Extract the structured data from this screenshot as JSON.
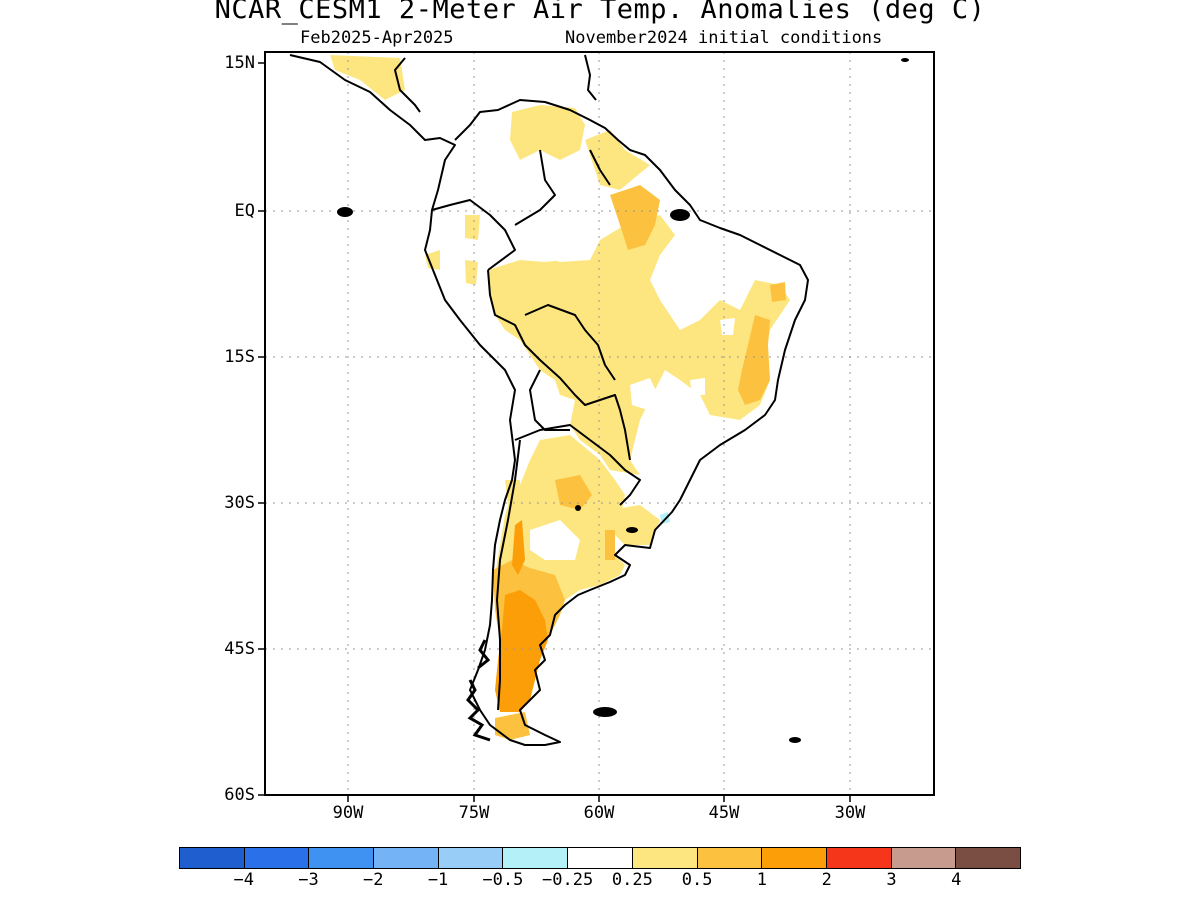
{
  "title": "NCAR_CESM1 2-Meter Air Temp. Anomalies (deg C)",
  "subtitle_period": "Feb2025-Apr2025",
  "subtitle_init": "November2024 initial conditions",
  "lat_labels": [
    "15N",
    "EQ",
    "15S",
    "30S",
    "45S",
    "60S"
  ],
  "lon_labels": [
    "90W",
    "75W",
    "60W",
    "45W",
    "30W"
  ],
  "colorbar": {
    "colors": [
      "#1f5ecf",
      "#2a70e8",
      "#3f92f2",
      "#74b3f6",
      "#98cdf8",
      "#b3f0f8",
      "#ffffff",
      "#fde67f",
      "#fcc13e",
      "#fb9e08",
      "#f5361a",
      "#c79c8f",
      "#7a4e42"
    ],
    "labels": [
      "-4",
      "-3",
      "-2",
      "-1",
      "-0.5",
      "-0.25",
      "0.25",
      "0.5",
      "1",
      "2",
      "3",
      "4"
    ]
  },
  "legend_categories": {
    "light_yellow": "0.25 to 0.5",
    "light_orange": "0.5 to 1",
    "orange": "1 to 2"
  }
}
